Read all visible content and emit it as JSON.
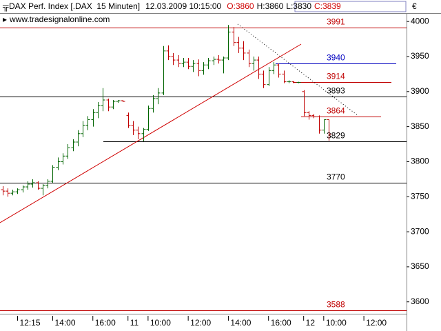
{
  "chart_data": {
    "type": "ohlc",
    "title": "DAX Perf. Index [.DAX  15 Minuten]",
    "timestamp": "12.03.2009 10:15:00",
    "quote": [
      {
        "label": "O:",
        "value": 3860,
        "color": "#d00000"
      },
      {
        "label": "H:",
        "value": 3860,
        "color": "#000000"
      },
      {
        "label": "L:",
        "value": 3830,
        "color": "#000000"
      },
      {
        "label": "C:",
        "value": 3839,
        "color": "#d00000"
      }
    ],
    "currency": "€",
    "watermark": "www.tradesignalonline.com",
    "up_color": "#006400",
    "down_color": "#c00000",
    "categories": [
      null,
      null,
      null,
      "12:15",
      null,
      null,
      null,
      null,
      null,
      null,
      "14:00",
      null,
      null,
      null,
      null,
      null,
      null,
      null,
      "16:00",
      null,
      null,
      null,
      null,
      null,
      null,
      "11",
      null,
      null,
      null,
      "10:00",
      null,
      null,
      null,
      null,
      null,
      null,
      null,
      "12:00",
      null,
      null,
      null,
      null,
      null,
      null,
      null,
      "14:00",
      null,
      null,
      null,
      null,
      null,
      null,
      null,
      "16:00",
      null,
      null,
      null,
      null,
      null,
      null,
      "12",
      null,
      null,
      null,
      "10:00",
      null,
      null,
      null,
      null,
      null,
      null,
      null,
      "12:00",
      null,
      null,
      null,
      null,
      null,
      null,
      null,
      null
    ],
    "open": [
      3760,
      3758,
      3755,
      3757,
      3760,
      3764,
      3768,
      3770,
      3762,
      3766,
      3772,
      3792,
      3800,
      3808,
      3820,
      3828,
      3840,
      3852,
      3860,
      3870,
      3880,
      3888,
      3878,
      3886,
      3887,
      3866,
      3852,
      3845,
      3840,
      3846,
      3876,
      3890,
      3898,
      3958,
      3950,
      3945,
      3940,
      3942,
      3936,
      3940,
      3930,
      3938,
      3944,
      3946,
      3945,
      3948,
      3985,
      3970,
      3962,
      3955,
      3940,
      3945,
      3925,
      3910,
      3930,
      3938,
      3925,
      3914,
      3914,
      3913,
      3900,
      3870,
      3866,
      3864,
      3845,
      3860,
      null,
      null,
      null,
      null,
      null,
      null,
      null,
      null,
      null,
      null,
      null,
      null,
      null,
      null,
      null
    ],
    "high": [
      3765,
      3762,
      3760,
      3762,
      3766,
      3772,
      3775,
      3772,
      3768,
      3775,
      3795,
      3806,
      3812,
      3825,
      3832,
      3845,
      3858,
      3865,
      3875,
      3885,
      3905,
      3890,
      3888,
      3888,
      3888,
      3870,
      3858,
      3850,
      3848,
      3880,
      3895,
      3905,
      3965,
      3966,
      3955,
      3952,
      3948,
      3948,
      3945,
      3946,
      3942,
      3948,
      3950,
      3952,
      3950,
      3995,
      3992,
      3978,
      3972,
      3960,
      3950,
      3950,
      3930,
      3935,
      3942,
      3940,
      3930,
      3916,
      3915,
      3914,
      3902,
      3872,
      3868,
      3866,
      3860,
      3860,
      null,
      null,
      null,
      null,
      null,
      null,
      null,
      null,
      null,
      null,
      null,
      null,
      null,
      null,
      null
    ],
    "low": [
      3752,
      3750,
      3752,
      3754,
      3756,
      3760,
      3763,
      3760,
      3752,
      3762,
      3770,
      3788,
      3796,
      3804,
      3815,
      3822,
      3835,
      3845,
      3850,
      3862,
      3872,
      3872,
      3875,
      3884,
      3885,
      3848,
      3838,
      3832,
      3829,
      3844,
      3870,
      3882,
      3895,
      3945,
      3938,
      3935,
      3935,
      3932,
      3928,
      3922,
      3924,
      3932,
      3938,
      3940,
      3926,
      3945,
      3965,
      3955,
      3945,
      3935,
      3930,
      3918,
      3905,
      3908,
      3925,
      3920,
      3912,
      3912,
      3912,
      3912,
      3865,
      3860,
      3862,
      3840,
      3840,
      3830,
      null,
      null,
      null,
      null,
      null,
      null,
      null,
      null,
      null,
      null,
      null,
      null,
      null,
      null,
      null
    ],
    "close": [
      3758,
      3755,
      3757,
      3760,
      3764,
      3768,
      3770,
      3762,
      3766,
      3772,
      3792,
      3800,
      3808,
      3820,
      3828,
      3840,
      3852,
      3860,
      3870,
      3880,
      3888,
      3878,
      3886,
      3887,
      3886,
      3852,
      3845,
      3840,
      3846,
      3876,
      3890,
      3898,
      3958,
      3950,
      3945,
      3940,
      3942,
      3936,
      3940,
      3930,
      3938,
      3944,
      3946,
      3945,
      3948,
      3985,
      3970,
      3962,
      3955,
      3940,
      3945,
      3925,
      3910,
      3930,
      3938,
      3925,
      3914,
      3914,
      3913,
      3913,
      3870,
      3866,
      3864,
      3845,
      3860,
      3839,
      null,
      null,
      null,
      null,
      null,
      null,
      null,
      null,
      null,
      null,
      null,
      null,
      null,
      null,
      null
    ],
    "levels": [
      {
        "value": 3991,
        "color": "#c00000"
      },
      {
        "value": 3940,
        "color": "#0000c0"
      },
      {
        "value": 3914,
        "color": "#c00000"
      },
      {
        "value": 3893,
        "color": "#000000"
      },
      {
        "value": 3864,
        "color": "#c00000"
      },
      {
        "value": 3829,
        "color": "#000000"
      },
      {
        "value": 3770,
        "color": "#000000"
      },
      {
        "value": 3588,
        "color": "#c00000"
      }
    ],
    "ylim": [
      3583,
      4011
    ],
    "yticks": [
      3600,
      3650,
      3700,
      3750,
      3800,
      3850,
      3900,
      3950,
      4000
    ]
  }
}
